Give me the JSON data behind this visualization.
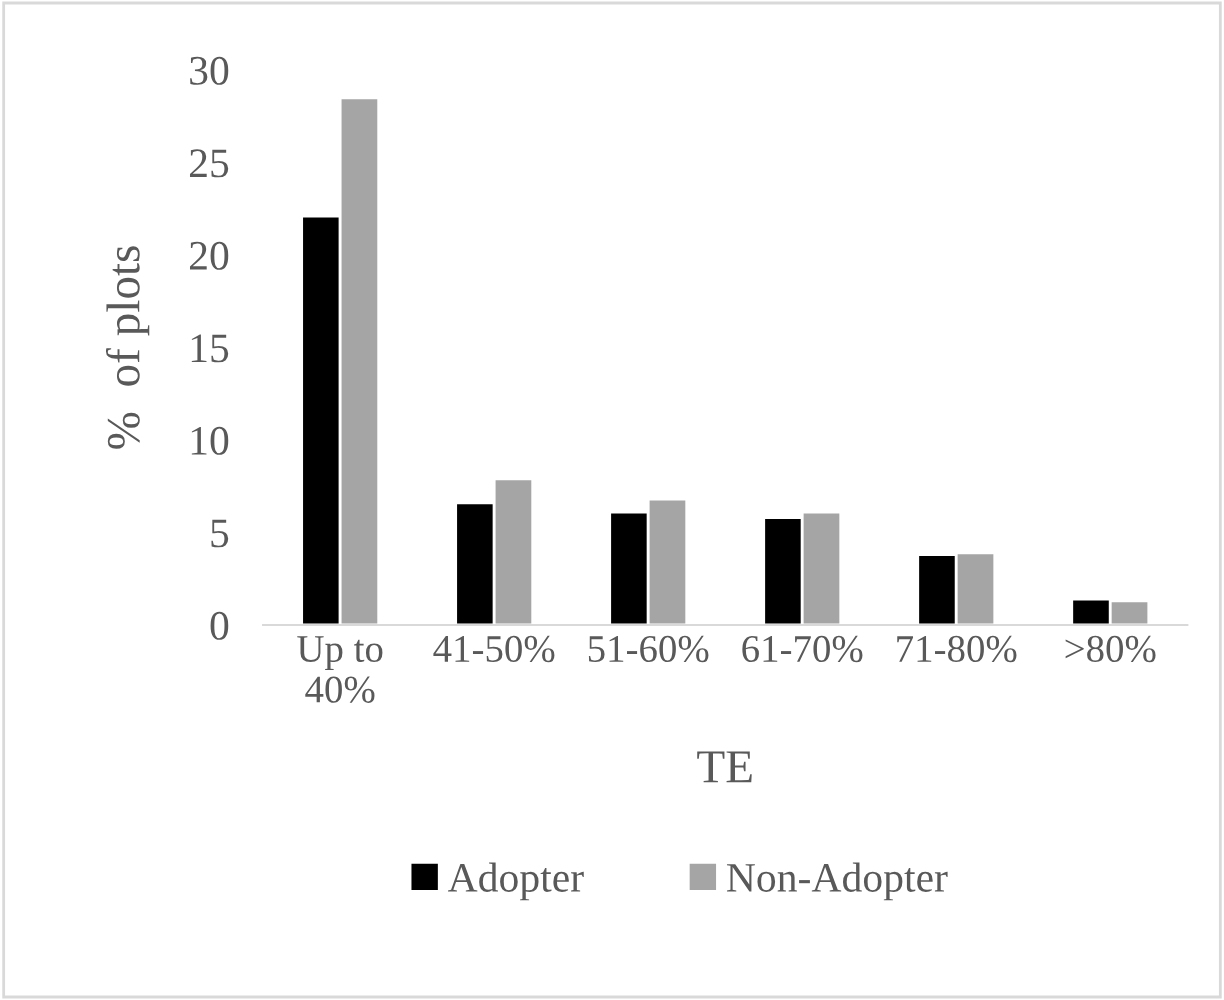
{
  "chart_data": {
    "type": "bar",
    "xlabel": "TE",
    "ylabel": "%  of plots",
    "categories": [
      "Up to\n40%",
      "41-50%",
      "51-60%",
      "61-70%",
      "71-80%",
      ">80%"
    ],
    "series": [
      {
        "name": "Adopter",
        "color": "#000000",
        "values": [
          22.1,
          6.6,
          6.1,
          5.8,
          3.8,
          1.4
        ]
      },
      {
        "name": "Non-Adopter",
        "color": "#a5a5a5",
        "values": [
          28.5,
          7.9,
          6.8,
          6.1,
          3.9,
          1.3
        ]
      }
    ],
    "ylim": [
      0,
      30
    ],
    "yticks": [
      0,
      5,
      10,
      15,
      20,
      25,
      30
    ],
    "grid": false,
    "legend": "bottom"
  }
}
